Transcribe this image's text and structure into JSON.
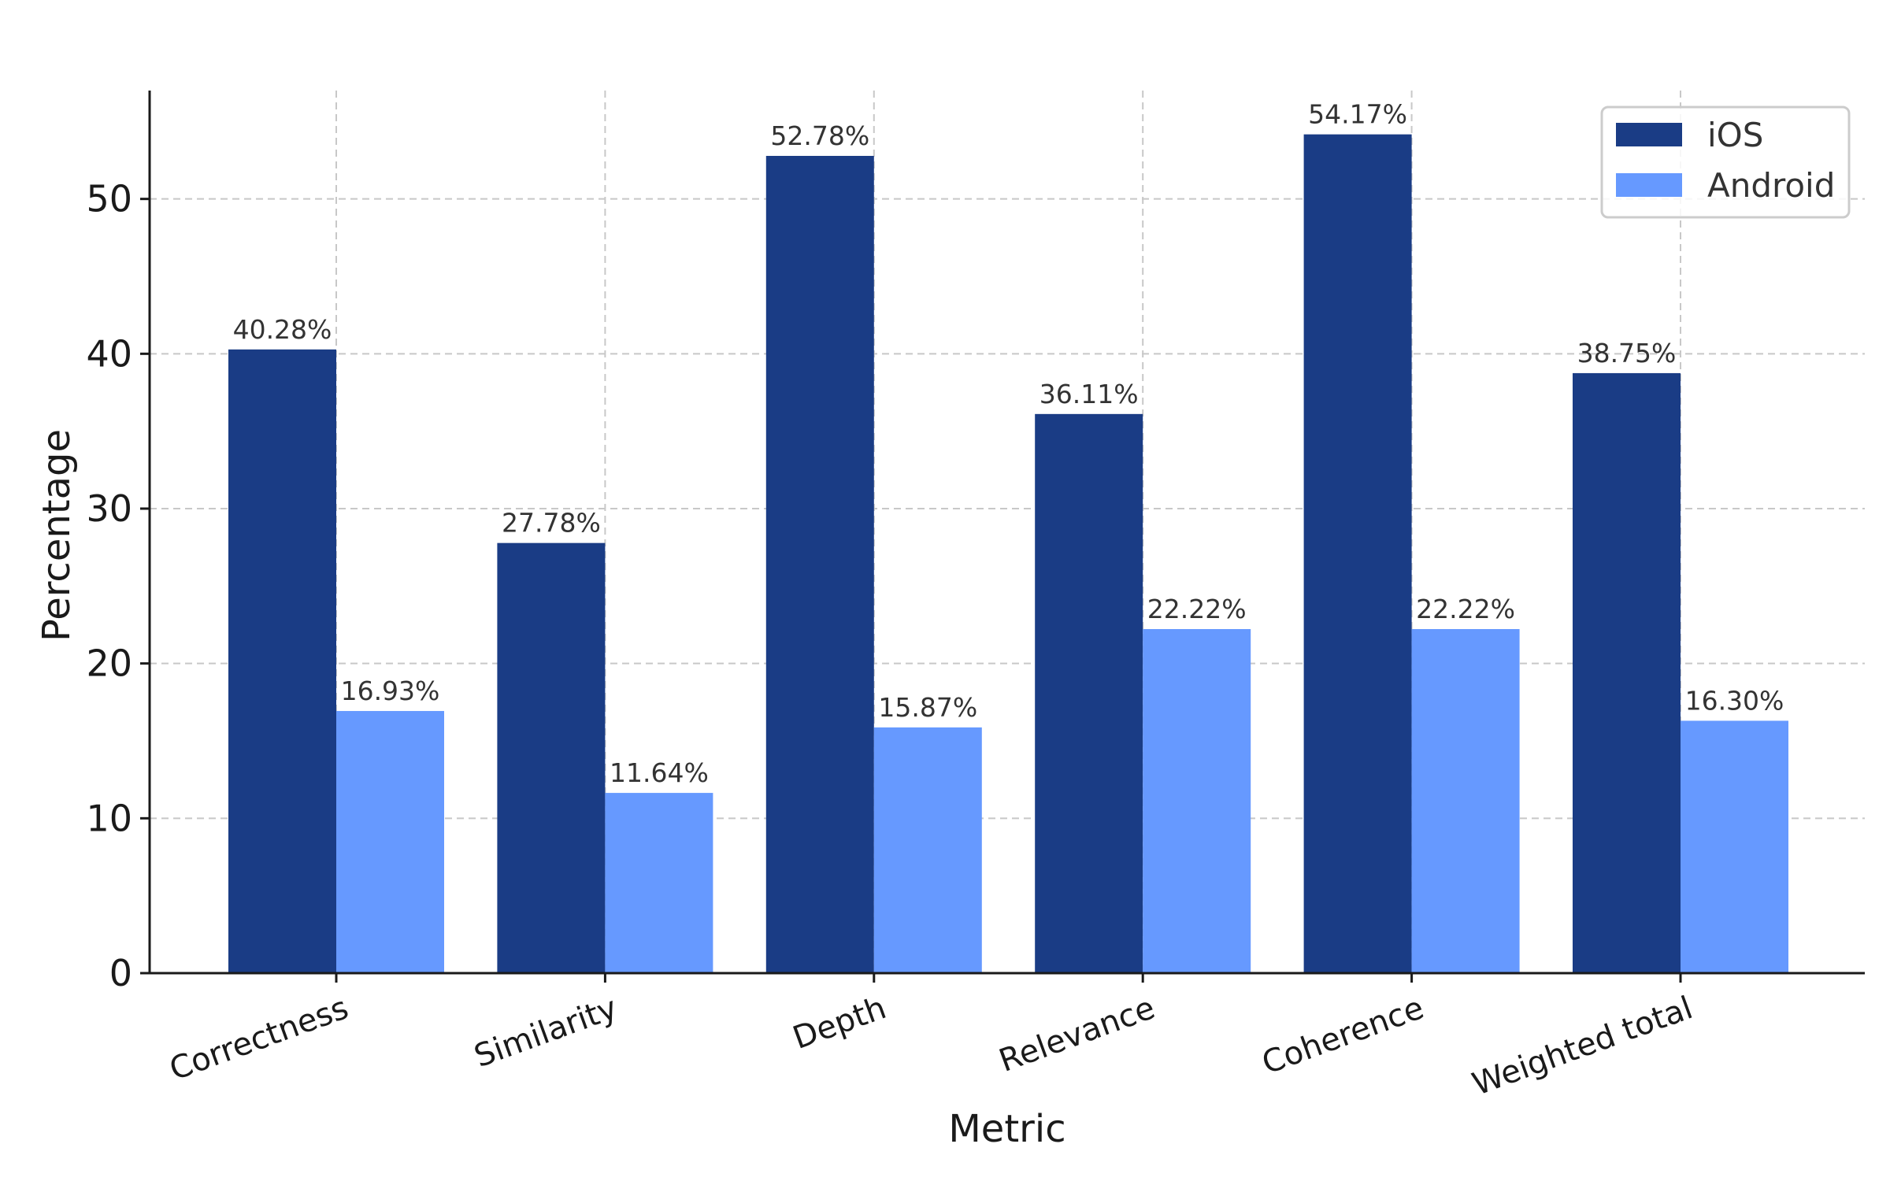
{
  "chart_data": {
    "type": "bar",
    "categories": [
      "Correctness",
      "Similarity",
      "Depth",
      "Relevance",
      "Coherence",
      "Weighted total"
    ],
    "series": [
      {
        "name": "iOS",
        "color": "#1a3c85",
        "values": [
          40.28,
          27.78,
          52.78,
          36.11,
          54.17,
          38.75
        ],
        "labels": [
          "40.28%",
          "27.78%",
          "52.78%",
          "36.11%",
          "54.17%",
          "38.75%"
        ]
      },
      {
        "name": "Android",
        "color": "#6699ff",
        "values": [
          16.93,
          11.64,
          15.87,
          22.22,
          22.22,
          16.3
        ],
        "labels": [
          "16.93%",
          "11.64%",
          "15.87%",
          "22.22%",
          "22.22%",
          "16.30%"
        ]
      }
    ],
    "xlabel": "Metric",
    "ylabel": "Percentage",
    "ylim": [
      0,
      57
    ],
    "yticks": [
      0,
      10,
      20,
      30,
      40,
      50
    ],
    "grid": true,
    "legend_position": "top-right",
    "category_label_rotation": "rotated"
  }
}
